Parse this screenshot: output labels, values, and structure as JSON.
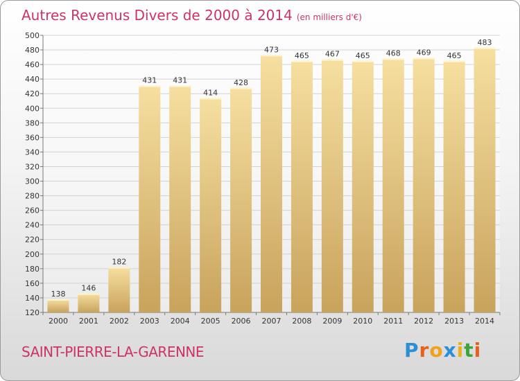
{
  "title": "Autres Revenus Divers de 2000 à 2014",
  "unit": "(en milliers d'€)",
  "city": "SAINT-PIERRE-LA-GARENNE",
  "logo": {
    "text": "Proxiti",
    "letters": [
      "P",
      "r",
      "o",
      "x",
      "i",
      "t",
      "i"
    ],
    "colors": [
      "#2a8fd6",
      "#e8601c",
      "#f0a21a",
      "#2a8fd6",
      "#e8b21a",
      "#3aa63a",
      "#e8601c"
    ]
  },
  "colors": {
    "bar_light": "#f6dfa0",
    "bar_dark": "#c8a35c",
    "title": "#cc3366"
  },
  "chart_data": {
    "type": "bar",
    "categories": [
      "2000",
      "2001",
      "2002",
      "2003",
      "2004",
      "2005",
      "2006",
      "2007",
      "2008",
      "2009",
      "2010",
      "2011",
      "2012",
      "2013",
      "2014"
    ],
    "values": [
      138,
      146,
      182,
      431,
      431,
      414,
      428,
      473,
      465,
      467,
      465,
      468,
      469,
      465,
      483
    ],
    "ylim": [
      120,
      500
    ],
    "yticks": [
      120,
      140,
      160,
      180,
      200,
      220,
      240,
      260,
      280,
      300,
      320,
      340,
      360,
      380,
      400,
      420,
      440,
      460,
      480,
      500
    ],
    "grid": true
  }
}
